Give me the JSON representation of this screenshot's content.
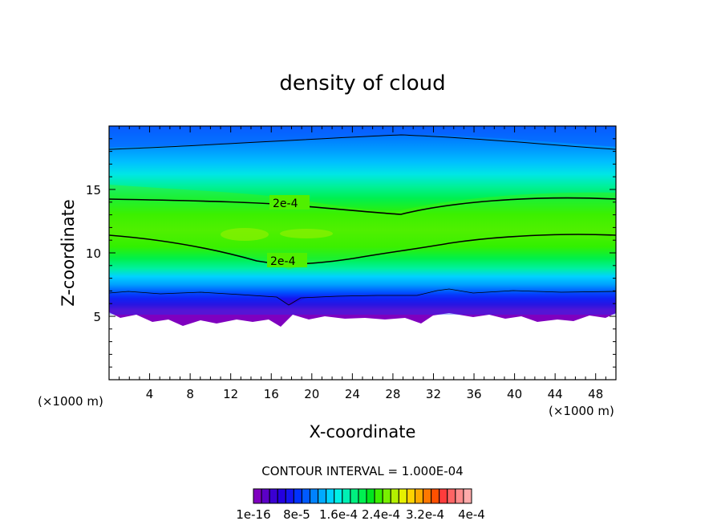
{
  "chart_data": {
    "type": "heatmap",
    "title": "density of cloud",
    "xlabel": "X-coordinate",
    "ylabel": "Z-coordinate",
    "x_unit_left": "(×1000 m)",
    "x_unit_right": "(×1000 m)",
    "xlim": [
      0,
      50
    ],
    "ylim": [
      0,
      20
    ],
    "x_ticks": [
      4,
      8,
      12,
      16,
      20,
      24,
      28,
      32,
      36,
      40,
      44,
      48
    ],
    "y_ticks": [
      5,
      10,
      15
    ],
    "contour_interval_text": "CONTOUR INTERVAL = 1.000E-04",
    "contour_label": "2e-4",
    "contour_value": 0.0002,
    "colorbar": {
      "min": 1e-16,
      "max": 0.0004,
      "labels": [
        "1e-16",
        "8e-5",
        "1.6e-4",
        "2.4e-4",
        "3.2e-4",
        "4e-4"
      ],
      "colors": [
        "#7f00bf",
        "#5b00c6",
        "#3a00d2",
        "#2400e0",
        "#1414f0",
        "#0032ff",
        "#005aff",
        "#0082ff",
        "#00aaff",
        "#00d2ff",
        "#00f0e6",
        "#00f0b4",
        "#00f080",
        "#00f050",
        "#00e61e",
        "#3cf000",
        "#78f000",
        "#b4f000",
        "#e6f000",
        "#ffd200",
        "#ffaa00",
        "#ff7800",
        "#ff5000",
        "#ff3c3c",
        "#ff6464",
        "#ff8c8c",
        "#ffaaaa"
      ]
    },
    "colors": {
      "top_blue": "#0078ff",
      "green_core": "#3cf000",
      "purple_base": "#7f00bf",
      "contour_line": "#000000"
    }
  }
}
